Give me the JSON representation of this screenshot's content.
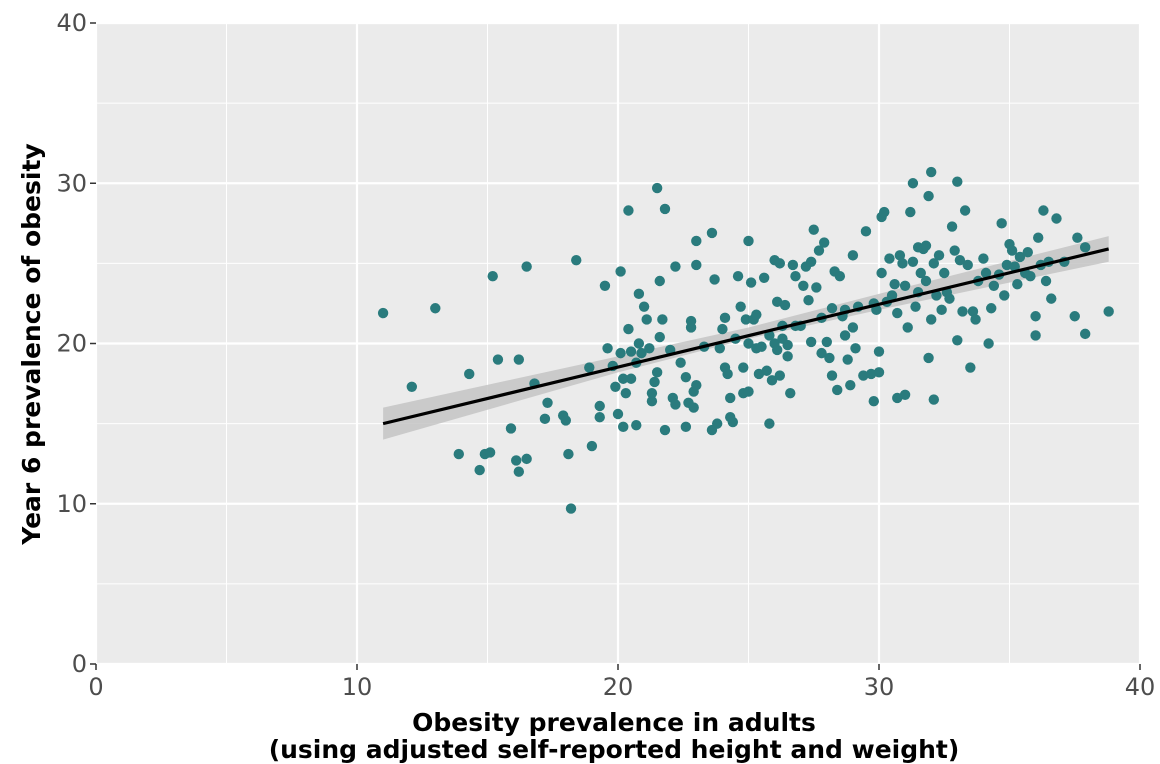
{
  "chart_data": {
    "type": "scatter",
    "xlabel_line1": "Obesity prevalence in adults",
    "xlabel_line2": "(using adjusted self-reported height and weight)",
    "ylabel": "Year 6 prevalence of obesity",
    "xlim": [
      0,
      40
    ],
    "ylim": [
      0,
      40
    ],
    "x_ticks": [
      "0",
      "10",
      "20",
      "30",
      "40"
    ],
    "y_ticks": [
      "0",
      "10",
      "20",
      "30",
      "40"
    ],
    "grid": true,
    "point_color": "#2a7b7d",
    "panel_background": "#ebebeb",
    "trend_line": {
      "x": [
        11.0,
        38.8
      ],
      "y": [
        15.0,
        25.9
      ],
      "color": "#000000"
    },
    "confidence_band": {
      "x": [
        11.0,
        20.0,
        25.0,
        30.0,
        38.8
      ],
      "lower": [
        14.0,
        18.2,
        20.3,
        22.1,
        25.1
      ],
      "upper": [
        16.0,
        19.2,
        21.0,
        23.1,
        26.7
      ],
      "color": "#c4c4c4"
    },
    "points": [
      [
        11.0,
        21.9
      ],
      [
        12.1,
        17.3
      ],
      [
        13.0,
        22.2
      ],
      [
        13.9,
        13.1
      ],
      [
        14.3,
        18.1
      ],
      [
        14.7,
        12.1
      ],
      [
        14.9,
        13.1
      ],
      [
        15.1,
        13.2
      ],
      [
        15.2,
        24.2
      ],
      [
        15.4,
        19.0
      ],
      [
        15.9,
        14.7
      ],
      [
        16.1,
        12.7
      ],
      [
        16.2,
        19.0
      ],
      [
        16.2,
        12.0
      ],
      [
        16.5,
        24.8
      ],
      [
        16.5,
        12.8
      ],
      [
        16.8,
        17.5
      ],
      [
        17.2,
        15.3
      ],
      [
        17.3,
        16.3
      ],
      [
        17.9,
        15.5
      ],
      [
        18.0,
        15.2
      ],
      [
        18.1,
        13.1
      ],
      [
        18.2,
        9.7
      ],
      [
        18.4,
        25.2
      ],
      [
        18.9,
        18.5
      ],
      [
        19.0,
        13.6
      ],
      [
        19.3,
        16.1
      ],
      [
        19.3,
        15.4
      ],
      [
        19.5,
        23.6
      ],
      [
        19.6,
        19.7
      ],
      [
        19.8,
        18.6
      ],
      [
        19.9,
        17.3
      ],
      [
        20.0,
        15.6
      ],
      [
        20.1,
        24.5
      ],
      [
        20.1,
        19.4
      ],
      [
        20.2,
        14.8
      ],
      [
        20.2,
        17.8
      ],
      [
        20.3,
        16.9
      ],
      [
        20.4,
        20.9
      ],
      [
        20.4,
        28.3
      ],
      [
        20.5,
        17.8
      ],
      [
        20.5,
        19.5
      ],
      [
        20.7,
        14.9
      ],
      [
        20.7,
        18.8
      ],
      [
        20.8,
        20.0
      ],
      [
        20.8,
        23.1
      ],
      [
        20.9,
        19.4
      ],
      [
        21.0,
        22.3
      ],
      [
        21.1,
        21.5
      ],
      [
        21.2,
        19.7
      ],
      [
        21.3,
        16.4
      ],
      [
        21.3,
        16.9
      ],
      [
        21.4,
        17.6
      ],
      [
        21.5,
        29.7
      ],
      [
        21.5,
        18.2
      ],
      [
        21.6,
        23.9
      ],
      [
        21.6,
        20.4
      ],
      [
        21.7,
        21.5
      ],
      [
        21.8,
        14.6
      ],
      [
        21.8,
        28.4
      ],
      [
        22.0,
        19.6
      ],
      [
        22.1,
        16.6
      ],
      [
        22.2,
        16.2
      ],
      [
        22.2,
        24.8
      ],
      [
        22.4,
        18.8
      ],
      [
        22.6,
        14.8
      ],
      [
        22.6,
        17.9
      ],
      [
        22.7,
        16.3
      ],
      [
        22.8,
        21.0
      ],
      [
        22.8,
        21.4
      ],
      [
        22.9,
        17.0
      ],
      [
        22.9,
        16.0
      ],
      [
        23.0,
        17.4
      ],
      [
        23.0,
        24.9
      ],
      [
        23.0,
        26.4
      ],
      [
        23.3,
        19.8
      ],
      [
        23.6,
        26.9
      ],
      [
        23.6,
        14.6
      ],
      [
        23.7,
        24.0
      ],
      [
        23.8,
        15.0
      ],
      [
        23.9,
        19.7
      ],
      [
        24.0,
        20.9
      ],
      [
        24.1,
        21.6
      ],
      [
        24.1,
        18.5
      ],
      [
        24.2,
        18.1
      ],
      [
        24.3,
        15.4
      ],
      [
        24.3,
        16.6
      ],
      [
        24.4,
        15.1
      ],
      [
        24.5,
        20.3
      ],
      [
        24.6,
        24.2
      ],
      [
        24.7,
        22.3
      ],
      [
        24.8,
        16.9
      ],
      [
        24.8,
        18.5
      ],
      [
        24.9,
        21.5
      ],
      [
        25.0,
        20.0
      ],
      [
        25.0,
        17.0
      ],
      [
        25.0,
        26.4
      ],
      [
        25.1,
        23.8
      ],
      [
        25.2,
        21.5
      ],
      [
        25.3,
        21.8
      ],
      [
        25.3,
        19.7
      ],
      [
        25.4,
        18.1
      ],
      [
        25.5,
        19.8
      ],
      [
        25.6,
        24.1
      ],
      [
        25.7,
        18.3
      ],
      [
        25.8,
        20.5
      ],
      [
        25.8,
        15.0
      ],
      [
        25.9,
        17.7
      ],
      [
        26.0,
        25.2
      ],
      [
        26.0,
        20.0
      ],
      [
        26.1,
        19.6
      ],
      [
        26.1,
        22.6
      ],
      [
        26.2,
        18.0
      ],
      [
        26.2,
        25.0
      ],
      [
        26.3,
        20.3
      ],
      [
        26.3,
        21.1
      ],
      [
        26.4,
        22.4
      ],
      [
        26.5,
        19.2
      ],
      [
        26.5,
        19.9
      ],
      [
        26.6,
        16.9
      ],
      [
        26.7,
        24.9
      ],
      [
        26.8,
        24.2
      ],
      [
        26.8,
        21.1
      ],
      [
        27.0,
        21.1
      ],
      [
        27.1,
        23.6
      ],
      [
        27.2,
        24.8
      ],
      [
        27.3,
        22.7
      ],
      [
        27.4,
        25.1
      ],
      [
        27.4,
        20.1
      ],
      [
        27.5,
        27.1
      ],
      [
        27.6,
        23.5
      ],
      [
        27.7,
        25.8
      ],
      [
        27.8,
        19.4
      ],
      [
        27.8,
        21.6
      ],
      [
        27.9,
        26.3
      ],
      [
        28.0,
        20.1
      ],
      [
        28.1,
        19.1
      ],
      [
        28.2,
        22.2
      ],
      [
        28.2,
        18.0
      ],
      [
        28.3,
        24.5
      ],
      [
        28.4,
        17.1
      ],
      [
        28.5,
        24.2
      ],
      [
        28.6,
        21.7
      ],
      [
        28.7,
        20.5
      ],
      [
        28.7,
        22.1
      ],
      [
        28.8,
        19.0
      ],
      [
        28.9,
        17.4
      ],
      [
        29.0,
        25.5
      ],
      [
        29.0,
        21.0
      ],
      [
        29.1,
        19.7
      ],
      [
        29.2,
        22.3
      ],
      [
        29.4,
        18.0
      ],
      [
        29.5,
        27.0
      ],
      [
        29.7,
        18.1
      ],
      [
        29.8,
        22.5
      ],
      [
        29.8,
        16.4
      ],
      [
        29.9,
        22.1
      ],
      [
        30.0,
        18.2
      ],
      [
        30.0,
        19.5
      ],
      [
        30.1,
        24.4
      ],
      [
        30.1,
        27.9
      ],
      [
        30.2,
        28.2
      ],
      [
        30.3,
        22.6
      ],
      [
        30.4,
        25.3
      ],
      [
        30.5,
        23.0
      ],
      [
        30.6,
        23.7
      ],
      [
        30.7,
        16.6
      ],
      [
        30.7,
        21.9
      ],
      [
        30.8,
        25.5
      ],
      [
        30.9,
        25.0
      ],
      [
        31.0,
        23.6
      ],
      [
        31.0,
        16.8
      ],
      [
        31.1,
        21.0
      ],
      [
        31.2,
        28.2
      ],
      [
        31.3,
        25.1
      ],
      [
        31.3,
        30.0
      ],
      [
        31.4,
        22.3
      ],
      [
        31.5,
        26.0
      ],
      [
        31.5,
        23.2
      ],
      [
        31.6,
        24.4
      ],
      [
        31.7,
        25.9
      ],
      [
        31.8,
        23.9
      ],
      [
        31.8,
        26.1
      ],
      [
        31.9,
        29.2
      ],
      [
        31.9,
        19.1
      ],
      [
        32.0,
        30.7
      ],
      [
        32.0,
        21.5
      ],
      [
        32.1,
        16.5
      ],
      [
        32.1,
        25.0
      ],
      [
        32.2,
        23.0
      ],
      [
        32.3,
        25.5
      ],
      [
        32.4,
        22.1
      ],
      [
        32.5,
        24.4
      ],
      [
        32.6,
        23.2
      ],
      [
        32.7,
        22.8
      ],
      [
        32.8,
        27.3
      ],
      [
        32.9,
        25.8
      ],
      [
        33.0,
        30.1
      ],
      [
        33.0,
        20.2
      ],
      [
        33.1,
        25.2
      ],
      [
        33.2,
        22.0
      ],
      [
        33.3,
        28.3
      ],
      [
        33.4,
        24.9
      ],
      [
        33.5,
        18.5
      ],
      [
        33.6,
        22.0
      ],
      [
        33.7,
        21.5
      ],
      [
        33.8,
        23.9
      ],
      [
        34.0,
        25.3
      ],
      [
        34.1,
        24.4
      ],
      [
        34.2,
        20.0
      ],
      [
        34.3,
        22.2
      ],
      [
        34.4,
        23.6
      ],
      [
        34.6,
        24.3
      ],
      [
        34.7,
        27.5
      ],
      [
        34.8,
        23.0
      ],
      [
        34.9,
        24.9
      ],
      [
        35.0,
        26.2
      ],
      [
        35.1,
        25.8
      ],
      [
        35.2,
        24.8
      ],
      [
        35.3,
        23.7
      ],
      [
        35.4,
        25.4
      ],
      [
        35.6,
        24.4
      ],
      [
        35.7,
        25.7
      ],
      [
        35.8,
        24.2
      ],
      [
        36.0,
        20.5
      ],
      [
        36.0,
        21.7
      ],
      [
        36.1,
        26.6
      ],
      [
        36.2,
        24.9
      ],
      [
        36.3,
        28.3
      ],
      [
        36.4,
        23.9
      ],
      [
        36.5,
        25.1
      ],
      [
        36.6,
        22.8
      ],
      [
        36.8,
        27.8
      ],
      [
        37.1,
        25.1
      ],
      [
        37.5,
        21.7
      ],
      [
        37.6,
        26.6
      ],
      [
        37.9,
        20.6
      ],
      [
        37.9,
        26.0
      ],
      [
        38.8,
        22.0
      ]
    ]
  }
}
